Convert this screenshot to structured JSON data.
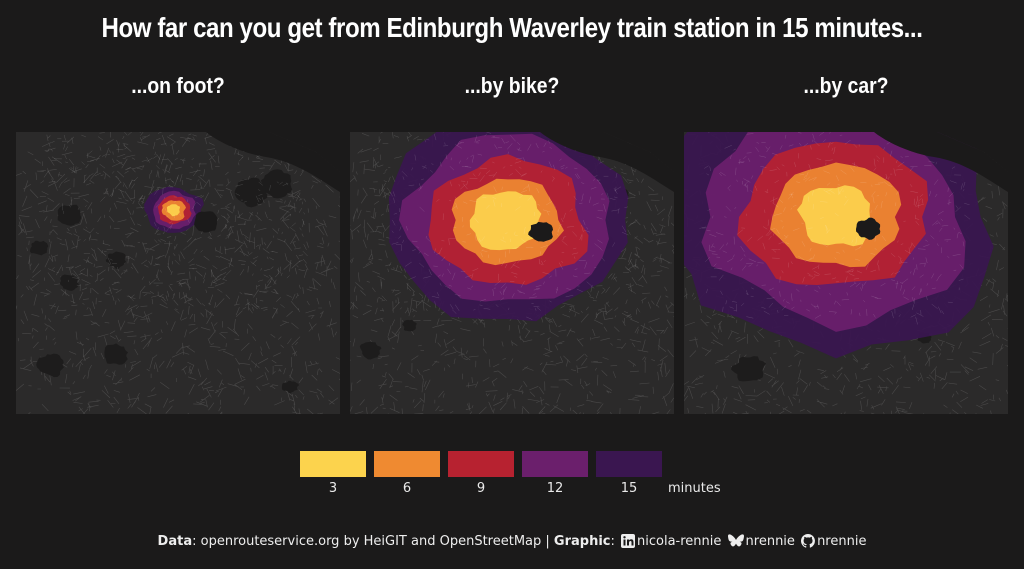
{
  "title": "How far can you get from Edinburgh Waverley train station in 15 minutes...",
  "panels": [
    {
      "title": "...on foot?",
      "mode": "foot"
    },
    {
      "title": "...by bike?",
      "mode": "bike"
    },
    {
      "title": "...by car?",
      "mode": "car"
    }
  ],
  "legend": {
    "unit": "minutes",
    "items": [
      {
        "label": "3",
        "color": "#fcd34d"
      },
      {
        "label": "6",
        "color": "#ef8a31"
      },
      {
        "label": "9",
        "color": "#b72230"
      },
      {
        "label": "12",
        "color": "#6b1f6c"
      },
      {
        "label": "15",
        "color": "#3a1650"
      }
    ]
  },
  "footer": {
    "data_label": "Data",
    "data_text": ": openrouteservice.org by HeiGIT and OpenStreetMap | ",
    "graphic_label": "Graphic",
    "sep": ":",
    "linkedin": "nicola-rennie",
    "bluesky": "nrennie",
    "github": "nrennie",
    "icons": [
      "linkedin-icon",
      "bluesky-icon",
      "github-icon"
    ]
  }
}
